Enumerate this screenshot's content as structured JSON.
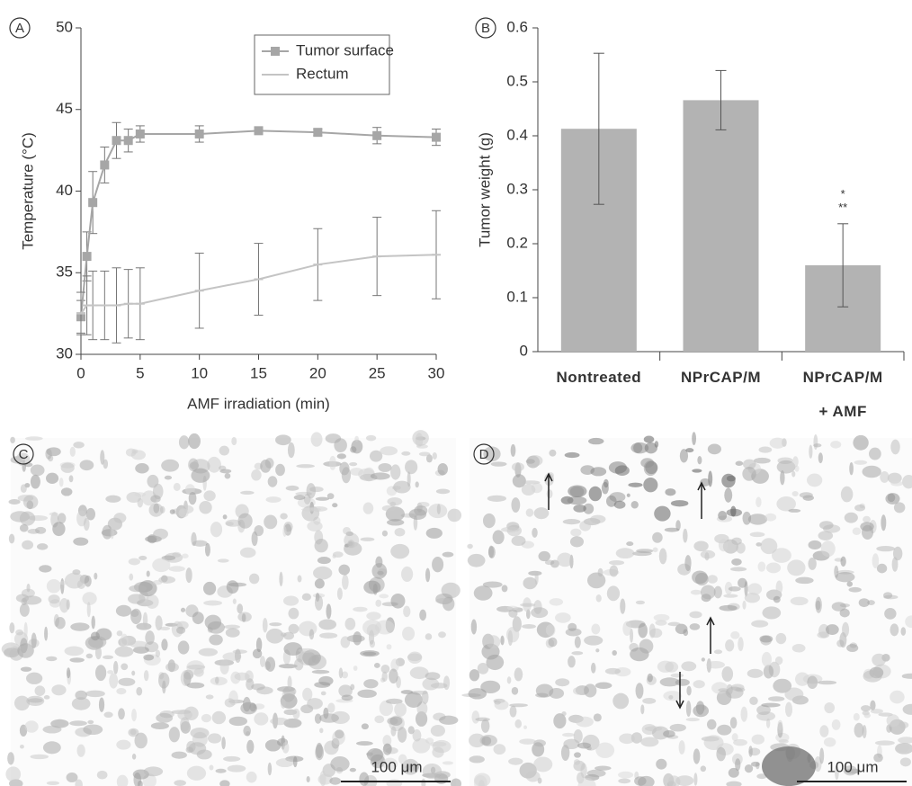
{
  "chart_data": [
    {
      "type": "line",
      "panel_label": "A",
      "x_label": "AMF irradiation (min)",
      "y_label": "Temperature (°C)",
      "x": [
        0,
        0.5,
        1,
        2,
        3,
        4,
        5,
        10,
        15,
        20,
        25,
        30
      ],
      "series": [
        {
          "name": "Tumor surface",
          "color": "#a6a6a6",
          "marker": "square",
          "values": [
            32.3,
            36.0,
            39.3,
            41.6,
            43.1,
            43.1,
            43.5,
            43.5,
            43.7,
            43.6,
            43.4,
            43.3
          ],
          "error": [
            1.0,
            1.5,
            1.9,
            1.1,
            1.1,
            0.7,
            0.5,
            0.5,
            0.2,
            0.2,
            0.5,
            0.5
          ]
        },
        {
          "name": "Rectum",
          "color": "#c4c4c4",
          "marker": "dash",
          "values": [
            32.5,
            33.0,
            33.0,
            33.0,
            33.0,
            33.1,
            33.1,
            33.9,
            34.6,
            35.5,
            36.0,
            36.1
          ],
          "error": [
            1.3,
            1.8,
            2.1,
            2.1,
            2.3,
            2.1,
            2.2,
            2.3,
            2.2,
            2.2,
            2.4,
            2.7
          ]
        }
      ],
      "xlim": [
        0,
        30
      ],
      "xticks": [
        0,
        5,
        10,
        15,
        20,
        25,
        30
      ],
      "ylim": [
        30,
        50
      ],
      "yticks": [
        30,
        35,
        40,
        45,
        50
      ],
      "legend": "upper right"
    },
    {
      "type": "bar",
      "panel_label": "B",
      "y_label": "Tumor weight (g)",
      "categories": [
        "Nontreated",
        "NPrCAP/M",
        "NPrCAP/M\n+ AMF"
      ],
      "values": [
        0.413,
        0.466,
        0.16
      ],
      "error": [
        0.14,
        0.055,
        0.077
      ],
      "color": "#b3b3b3",
      "annotations": [
        {
          "category": 2,
          "text": "*"
        },
        {
          "category": 2,
          "text": "**"
        }
      ],
      "ylim": [
        0,
        0.6
      ],
      "yticks": [
        0,
        0.1,
        0.2,
        0.3,
        0.4,
        0.5,
        0.6
      ]
    }
  ],
  "panels": [
    {
      "label": "C",
      "scale_bar": "100 μm"
    },
    {
      "label": "D",
      "scale_bar": "100 μm"
    }
  ]
}
